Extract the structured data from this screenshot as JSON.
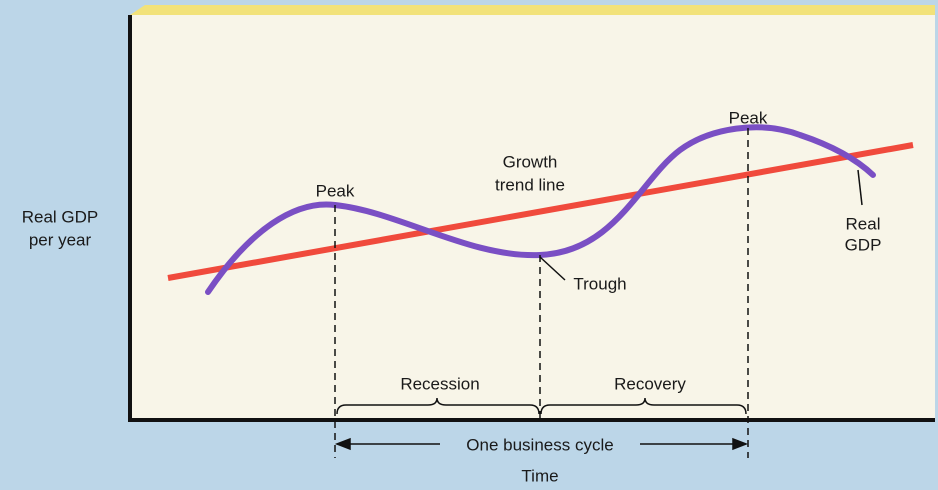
{
  "y_axis_label": {
    "lines": [
      "Real GDP",
      "per year"
    ]
  },
  "x_axis_label": "Time",
  "labels": {
    "peak_1": "Peak",
    "growth_trend_line": [
      "Growth",
      "trend line"
    ],
    "peak_2": "Peak",
    "real_gdp": [
      "Real",
      "GDP"
    ],
    "trough": "Trough",
    "recession": "Recession",
    "recovery": "Recovery",
    "one_business_cycle": "One business cycle"
  }
}
